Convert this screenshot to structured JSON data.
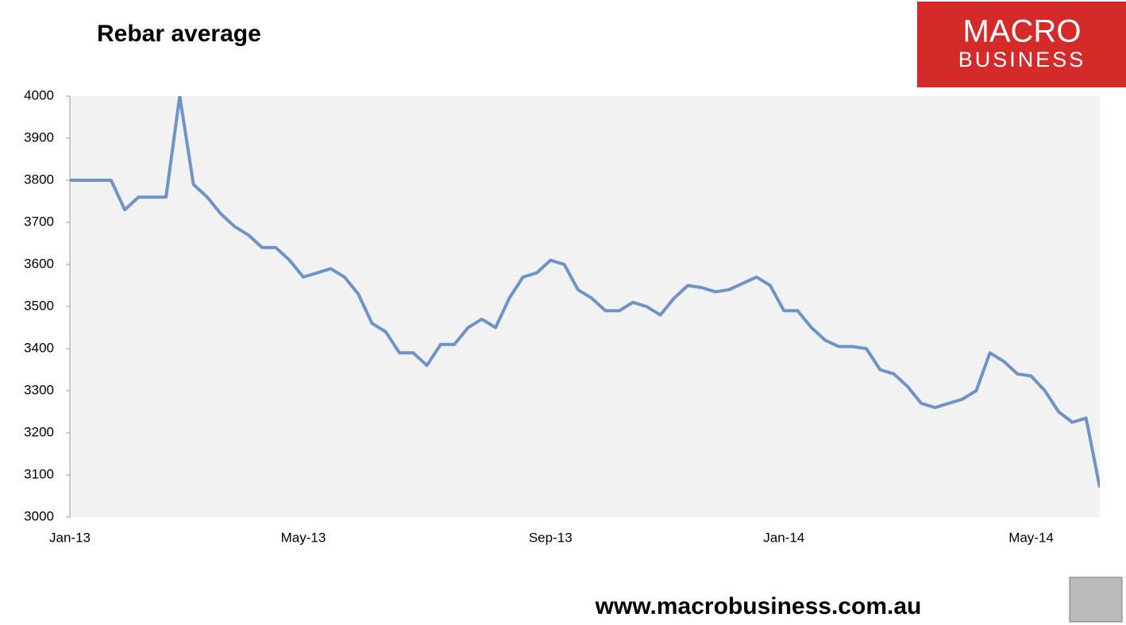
{
  "chart_data": {
    "type": "line",
    "title": "Rebar average",
    "categories": [
      "Jan-13",
      null,
      null,
      null,
      null,
      null,
      null,
      null,
      null,
      null,
      null,
      null,
      null,
      null,
      null,
      null,
      null,
      "May-13",
      null,
      null,
      null,
      null,
      null,
      null,
      null,
      null,
      null,
      null,
      null,
      null,
      null,
      null,
      null,
      null,
      null,
      "Sep-13",
      null,
      null,
      null,
      null,
      null,
      null,
      null,
      null,
      null,
      null,
      null,
      null,
      null,
      null,
      null,
      null,
      "Jan-14",
      null,
      null,
      null,
      null,
      null,
      null,
      null,
      null,
      null,
      null,
      null,
      null,
      null,
      null,
      null,
      null,
      null,
      "May-14",
      null,
      null,
      null,
      null,
      null
    ],
    "series": [
      {
        "name": "Rebar average",
        "color": "#6f93c9",
        "values": [
          3800,
          3800,
          3800,
          3800,
          3730,
          3760,
          3760,
          3760,
          4000,
          3790,
          3760,
          3720,
          3690,
          3670,
          3640,
          3640,
          3610,
          3570,
          3580,
          3590,
          3570,
          3530,
          3460,
          3440,
          3390,
          3390,
          3360,
          3410,
          3410,
          3450,
          3470,
          3450,
          3520,
          3570,
          3580,
          3610,
          3600,
          3540,
          3520,
          3490,
          3490,
          3510,
          3500,
          3480,
          3520,
          3550,
          3545,
          3535,
          3540,
          3555,
          3570,
          3550,
          3490,
          3490,
          3450,
          3420,
          3405,
          3405,
          3400,
          3350,
          3340,
          3310,
          3270,
          3260,
          3270,
          3280,
          3300,
          3390,
          3370,
          3340,
          3335,
          3300,
          3250,
          3225,
          3235,
          3070
        ]
      }
    ],
    "ylim": [
      3000,
      4000
    ],
    "yticks": [
      3000,
      3100,
      3200,
      3300,
      3400,
      3500,
      3600,
      3700,
      3800,
      3900,
      4000
    ],
    "grid": false
  },
  "logo": {
    "line1": "MACRO",
    "line2": "BUSINESS"
  },
  "footer": "www.macrobusiness.com.au"
}
